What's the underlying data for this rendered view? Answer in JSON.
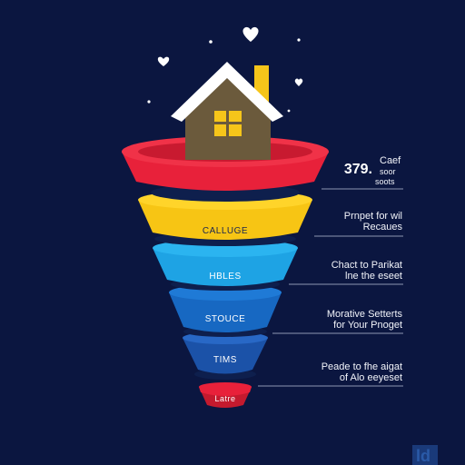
{
  "colors": {
    "background": "#0b1640",
    "red": "#e8213a",
    "yellow": "#f7c514",
    "light_blue": "#1ea3e4",
    "mid_blue": "#1768c2",
    "dark_blue": "#1b52a8",
    "roof": "#ffffff",
    "house_wall": "#6b5a3c",
    "window": "#f6c51a",
    "chimney": "#f6c51a"
  },
  "icons": [
    "house-icon",
    "heart-icon",
    "sparkle-icon"
  ],
  "funnel": {
    "stages": [
      {
        "name": "stage-red",
        "label": ""
      },
      {
        "name": "stage-yellow",
        "label": "CALLUGE"
      },
      {
        "name": "stage-light-blue",
        "label": "HBLES"
      },
      {
        "name": "stage-mid-blue",
        "label": "STOUCE"
      },
      {
        "name": "stage-dark-blue",
        "label": "TIMS"
      },
      {
        "name": "stage-bottom-red",
        "label": "Latre"
      }
    ]
  },
  "callouts": [
    {
      "big": "379.",
      "side_1": "Caef",
      "side_2": "soor",
      "side_3": "soots"
    },
    {
      "line_1": "Prnpet for wil",
      "line_2": "Recaues"
    },
    {
      "line_1": "Chact to Parikat",
      "line_2": "lne the eseet"
    },
    {
      "line_1": "Morative Setterts",
      "line_2": "for Your Pnoget"
    },
    {
      "line_1": "Peade to fhe aigat",
      "line_2": "of Alo eeyeset"
    }
  ],
  "logo": {
    "text": "ld"
  }
}
